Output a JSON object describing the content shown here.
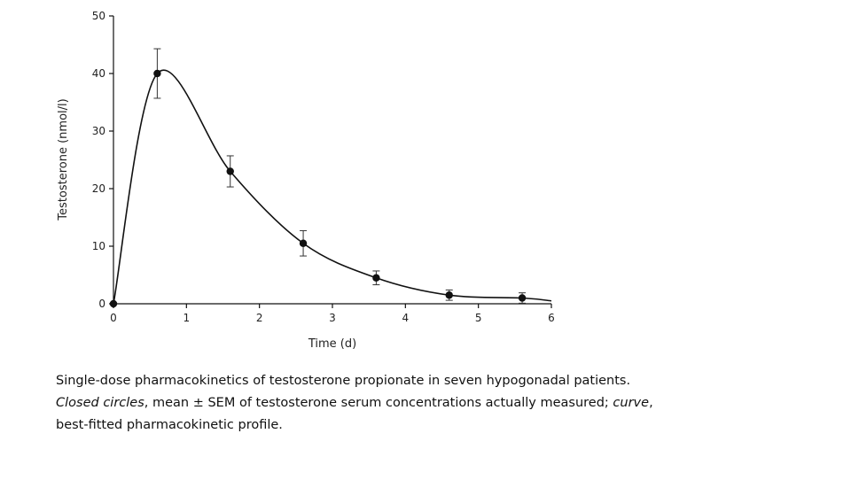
{
  "chart_data": {
    "type": "scatter",
    "xlabel": "Time (d)",
    "ylabel": "Testosterone (nmol/l)",
    "xlim": [
      0,
      6
    ],
    "ylim": [
      0,
      50
    ],
    "x_ticks": [
      "0",
      "1",
      "2",
      "3",
      "4",
      "5",
      "6"
    ],
    "y_ticks": [
      "0",
      "10",
      "20",
      "30",
      "40",
      "50"
    ],
    "grid": false,
    "legend": "none",
    "points": [
      {
        "x": 0,
        "y": 0,
        "sem": 0
      },
      {
        "x": 0.6,
        "y": 40,
        "sem": 4.3
      },
      {
        "x": 1.6,
        "y": 23,
        "sem": 2.7
      },
      {
        "x": 2.6,
        "y": 10.5,
        "sem": 2.2
      },
      {
        "x": 3.6,
        "y": 4.5,
        "sem": 1.2
      },
      {
        "x": 4.6,
        "y": 1.5,
        "sem": 0.9
      },
      {
        "x": 5.6,
        "y": 1.0,
        "sem": 0.9
      }
    ],
    "curve": {
      "type": "fitted",
      "color": "#111111"
    },
    "marker_color": "#111111"
  },
  "caption": {
    "line1": "Single-dose pharmacokinetics of testosterone propionate in seven hypogonadal patients.",
    "line2_italic1": "Closed circles",
    "line2_text": ", mean ± SEM of testosterone serum concentrations actually measured; ",
    "line2_italic2": "curve",
    "line2_end": ",",
    "line3": "best-fitted pharmacokinetic profile."
  }
}
